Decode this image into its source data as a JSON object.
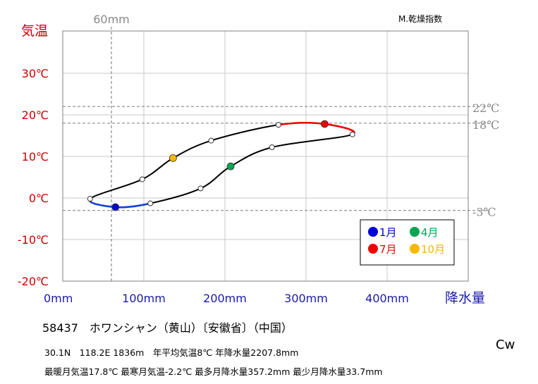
{
  "chart_data": {
    "type": "line",
    "title": "",
    "ylabel": "気温",
    "xlabel": "降水量",
    "top_right_label": "M.乾燥指数",
    "xlim": [
      0,
      500
    ],
    "ylim": [
      -20,
      40
    ],
    "x_ticks": [
      {
        "value": 0,
        "label": "0mm"
      },
      {
        "value": 100,
        "label": "100mm"
      },
      {
        "value": 200,
        "label": "200mm"
      },
      {
        "value": 300,
        "label": "300mm"
      },
      {
        "value": 400,
        "label": "400mm"
      }
    ],
    "y_ticks": [
      {
        "value": 30,
        "label": "30℃"
      },
      {
        "value": 20,
        "label": "20℃"
      },
      {
        "value": 10,
        "label": "10℃"
      },
      {
        "value": 0,
        "label": "0℃"
      },
      {
        "value": -10,
        "label": "-10℃"
      },
      {
        "value": -20,
        "label": "-20℃"
      }
    ],
    "grid": true,
    "reference_lines": {
      "vertical": [
        {
          "value": 60,
          "label": "60mm"
        }
      ],
      "horizontal": [
        {
          "value": 22,
          "label": "22℃"
        },
        {
          "value": 18,
          "label": "18℃"
        },
        {
          "value": -3,
          "label": "-3℃"
        }
      ]
    },
    "months": [
      {
        "month": 1,
        "precip": 65,
        "temp": -2.2
      },
      {
        "month": 2,
        "precip": 108,
        "temp": -1.3
      },
      {
        "month": 3,
        "precip": 170,
        "temp": 2.3
      },
      {
        "month": 4,
        "precip": 207,
        "temp": 7.6
      },
      {
        "month": 5,
        "precip": 258,
        "temp": 12.2
      },
      {
        "month": 6,
        "precip": 357.2,
        "temp": 15.3
      },
      {
        "month": 7,
        "precip": 323,
        "temp": 17.8
      },
      {
        "month": 8,
        "precip": 266,
        "temp": 17.6
      },
      {
        "month": 9,
        "precip": 183,
        "temp": 13.8
      },
      {
        "month": 10,
        "precip": 136,
        "temp": 9.6
      },
      {
        "month": 11,
        "precip": 98,
        "temp": 4.5
      },
      {
        "month": 12,
        "precip": 33.7,
        "temp": -0.2
      }
    ],
    "legend": [
      {
        "month": 1,
        "label": "1月",
        "color": "#0000dd"
      },
      {
        "month": 4,
        "label": "4月",
        "color": "#00a651"
      },
      {
        "month": 7,
        "label": "7月",
        "color": "#ee0000"
      },
      {
        "month": 10,
        "label": "10月",
        "color": "#f5b800"
      }
    ],
    "colors": {
      "axis_text_temp": "#cc0000",
      "axis_text_precip": "#1a1aaa",
      "reference": "#888888",
      "winter_segment": "#1a3fd6",
      "summer_segment": "#ee0000",
      "main_line": "#000000"
    }
  },
  "station": "58437　ホワンシャン（黄山）〔安徽省〕（中国）",
  "info_line1": "30.1N　118.2E 1836m　年平均気温8℃ 年降水量2207.8mm",
  "info_line2": "最暖月気温17.8℃ 最寒月気温-2.2℃ 最多月降水量357.2mm 最少月降水量33.7mm",
  "climate_code": "Cw"
}
